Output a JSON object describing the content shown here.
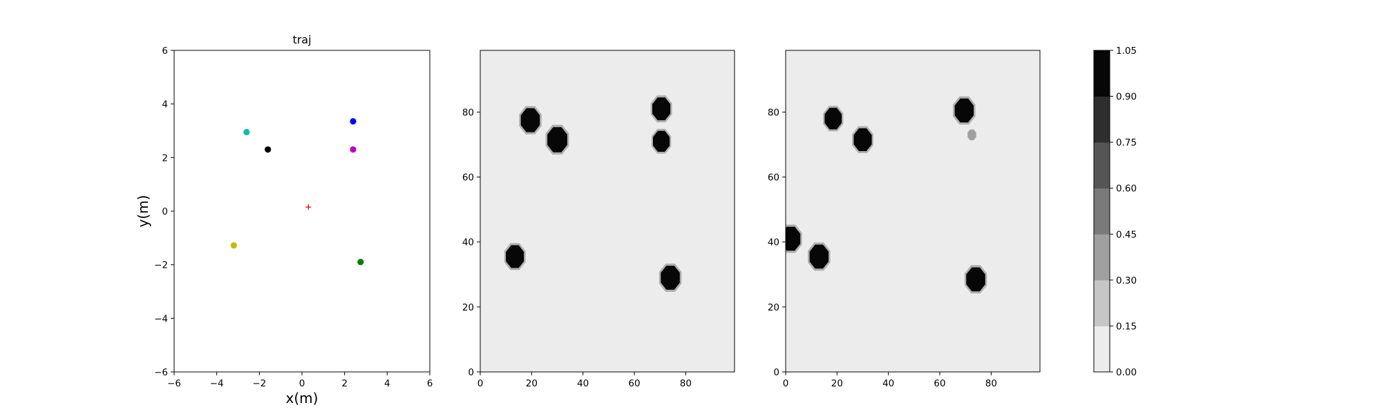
{
  "chart_data": [
    {
      "type": "scatter",
      "title": "traj",
      "xlabel": "x(m)",
      "ylabel": "y(m)",
      "xlim": [
        -6,
        6
      ],
      "ylim": [
        -6,
        6
      ],
      "xticks": [
        -6,
        -4,
        -2,
        0,
        2,
        4,
        6
      ],
      "yticks": [
        -6,
        -4,
        -2,
        0,
        2,
        4,
        6
      ],
      "grid": false,
      "points": [
        {
          "x": -2.6,
          "y": 2.95,
          "color": "#00bfbf",
          "marker": "circle"
        },
        {
          "x": -1.6,
          "y": 2.3,
          "color": "#000000",
          "marker": "circle"
        },
        {
          "x": 2.4,
          "y": 3.35,
          "color": "#0000ff",
          "marker": "circle"
        },
        {
          "x": 2.4,
          "y": 2.3,
          "color": "#bf00bf",
          "marker": "circle"
        },
        {
          "x": -3.2,
          "y": -1.28,
          "color": "#bfbf00",
          "marker": "circle"
        },
        {
          "x": 2.75,
          "y": -1.9,
          "color": "#008000",
          "marker": "circle"
        },
        {
          "x": 0.3,
          "y": 0.15,
          "color": "#ff0000",
          "marker": "plus"
        }
      ]
    },
    {
      "type": "heatmap",
      "title": "",
      "xlim": [
        0,
        99
      ],
      "ylim": [
        0,
        99
      ],
      "xticks": [
        0,
        20,
        40,
        60,
        80
      ],
      "yticks": [
        0,
        20,
        40,
        60,
        80
      ],
      "background_value": 0.05,
      "blobs": [
        {
          "x": 19.5,
          "y": 77.5,
          "r": 4.0,
          "value": 1.0
        },
        {
          "x": 30.0,
          "y": 71.5,
          "r": 4.2,
          "value": 1.0
        },
        {
          "x": 70.5,
          "y": 81.0,
          "r": 3.8,
          "value": 1.0
        },
        {
          "x": 70.5,
          "y": 71.0,
          "r": 3.5,
          "value": 1.0
        },
        {
          "x": 13.5,
          "y": 35.5,
          "r": 3.8,
          "value": 1.0
        },
        {
          "x": 74.0,
          "y": 29.0,
          "r": 4.0,
          "value": 1.0
        }
      ]
    },
    {
      "type": "heatmap",
      "title": "",
      "xlim": [
        0,
        99
      ],
      "ylim": [
        0,
        99
      ],
      "xticks": [
        0,
        20,
        40,
        60,
        80
      ],
      "yticks": [
        0,
        20,
        40,
        60,
        80
      ],
      "background_value": 0.05,
      "blobs": [
        {
          "x": 18.5,
          "y": 78.0,
          "r": 3.6,
          "value": 1.0
        },
        {
          "x": 30.0,
          "y": 71.5,
          "r": 3.8,
          "value": 1.0
        },
        {
          "x": 69.5,
          "y": 80.5,
          "r": 4.0,
          "value": 1.0
        },
        {
          "x": 72.5,
          "y": 73.0,
          "r": 1.8,
          "value": 0.4
        },
        {
          "x": 2.0,
          "y": 41.0,
          "r": 4.0,
          "value": 1.0
        },
        {
          "x": 13.0,
          "y": 35.5,
          "r": 4.0,
          "value": 1.0
        },
        {
          "x": 74.0,
          "y": 28.5,
          "r": 4.0,
          "value": 1.0
        }
      ]
    },
    {
      "type": "colorbar",
      "range": [
        0.0,
        1.05
      ],
      "ticks": [
        "0.00",
        "0.15",
        "0.30",
        "0.45",
        "0.60",
        "0.75",
        "0.90",
        "1.05"
      ],
      "colors": [
        "#ececec",
        "#c6c6c6",
        "#a0a0a0",
        "#7a7a7a",
        "#555555",
        "#2e2e2e",
        "#070707"
      ]
    }
  ]
}
